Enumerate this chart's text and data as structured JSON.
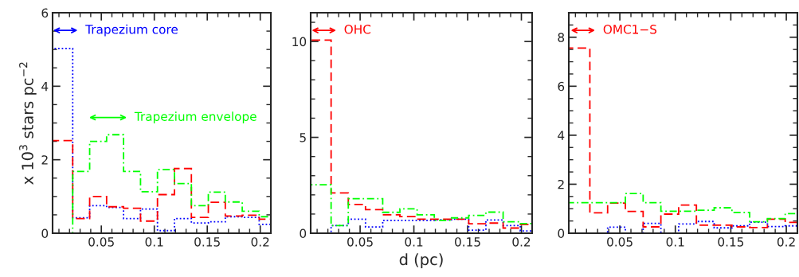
{
  "chart_data": [
    {
      "type": "histogram",
      "ylabel": "x 10$^{3}$ stars pc$^{−2}$",
      "bins": [
        0.004,
        0.023,
        0.039,
        0.055,
        0.071,
        0.087,
        0.103,
        0.119,
        0.135,
        0.151,
        0.167,
        0.183,
        0.199,
        0.21
      ],
      "xlim": [
        0.004,
        0.21
      ],
      "xticks": [
        0.05,
        0.1,
        0.15,
        0.2
      ],
      "ylim": [
        0,
        6
      ],
      "yticks": [
        0,
        2,
        4,
        6
      ],
      "series": [
        {
          "color": "#0000ff",
          "line_style": "dotted",
          "values": [
            5.03,
            0.42,
            0.75,
            0.7,
            0.4,
            0.66,
            0.07,
            0.4,
            0.28,
            0.31,
            0.45,
            0.43,
            0.24
          ]
        },
        {
          "color": "#ff0000",
          "line_style": "dashed",
          "values": [
            2.52,
            0.4,
            1.0,
            0.72,
            0.68,
            0.33,
            1.05,
            1.76,
            0.43,
            0.84,
            0.47,
            0.49,
            0.38
          ]
        },
        {
          "color": "#00ff00",
          "line_style": "dashdot",
          "values": [
            0,
            1.68,
            2.5,
            2.68,
            1.68,
            1.13,
            1.73,
            1.35,
            0.75,
            1.12,
            0.85,
            0.6,
            0.45
          ]
        }
      ],
      "annotations": [
        "Trapezium core",
        "Trapezium envelope"
      ]
    },
    {
      "type": "histogram",
      "xlabel": "d (pc)",
      "bins": [
        0.004,
        0.023,
        0.039,
        0.055,
        0.071,
        0.087,
        0.103,
        0.119,
        0.135,
        0.151,
        0.167,
        0.183,
        0.199,
        0.21
      ],
      "xlim": [
        0.004,
        0.21
      ],
      "xticks": [
        0.05,
        0.1,
        0.15,
        0.2
      ],
      "ylim": [
        0,
        11.5
      ],
      "yticks": [
        0,
        5,
        10
      ],
      "series": [
        {
          "color": "#0000ff",
          "line_style": "dotted",
          "values": [
            0,
            0.4,
            0.73,
            0.33,
            0.67,
            0.67,
            0.67,
            0.7,
            0.73,
            0.16,
            0.69,
            0.4,
            0.12
          ]
        },
        {
          "color": "#ff0000",
          "line_style": "dashed",
          "values": [
            10.07,
            2.1,
            1.5,
            1.23,
            0.96,
            0.87,
            0.73,
            0.73,
            0.73,
            0.49,
            0.53,
            0.27,
            0.45
          ]
        },
        {
          "color": "#00ff00",
          "line_style": "dashdot",
          "values": [
            2.53,
            0.4,
            1.8,
            1.8,
            1.09,
            1.27,
            0.96,
            0.67,
            0.8,
            0.93,
            1.1,
            0.6,
            0.5
          ]
        }
      ],
      "annotations": [
        "OHC"
      ]
    },
    {
      "type": "histogram",
      "bins": [
        0.004,
        0.023,
        0.039,
        0.055,
        0.071,
        0.087,
        0.103,
        0.119,
        0.135,
        0.151,
        0.167,
        0.183,
        0.199,
        0.21
      ],
      "xlim": [
        0.004,
        0.21
      ],
      "xticks": [
        0.05,
        0.1,
        0.15,
        0.2
      ],
      "ylim": [
        0,
        9
      ],
      "yticks": [
        0,
        2,
        4,
        6,
        8
      ],
      "series": [
        {
          "color": "#0000ff",
          "line_style": "dotted",
          "values": [
            0,
            0,
            0.25,
            0,
            0.4,
            0,
            0.38,
            0.48,
            0.22,
            0.3,
            0.45,
            0.27,
            0.3
          ]
        },
        {
          "color": "#ff0000",
          "line_style": "dashed",
          "values": [
            7.56,
            0.83,
            1.23,
            0.89,
            0.26,
            0.78,
            1.15,
            0.33,
            0.33,
            0.26,
            0.23,
            0.57,
            0.44
          ]
        },
        {
          "color": "#00ff00",
          "line_style": "dashdot",
          "values": [
            1.25,
            1.25,
            1.25,
            1.62,
            1.25,
            0.9,
            0.9,
            0.94,
            1.04,
            0.85,
            0.47,
            0.6,
            0.8
          ]
        }
      ],
      "annotations": [
        "OMC1−S"
      ]
    }
  ]
}
